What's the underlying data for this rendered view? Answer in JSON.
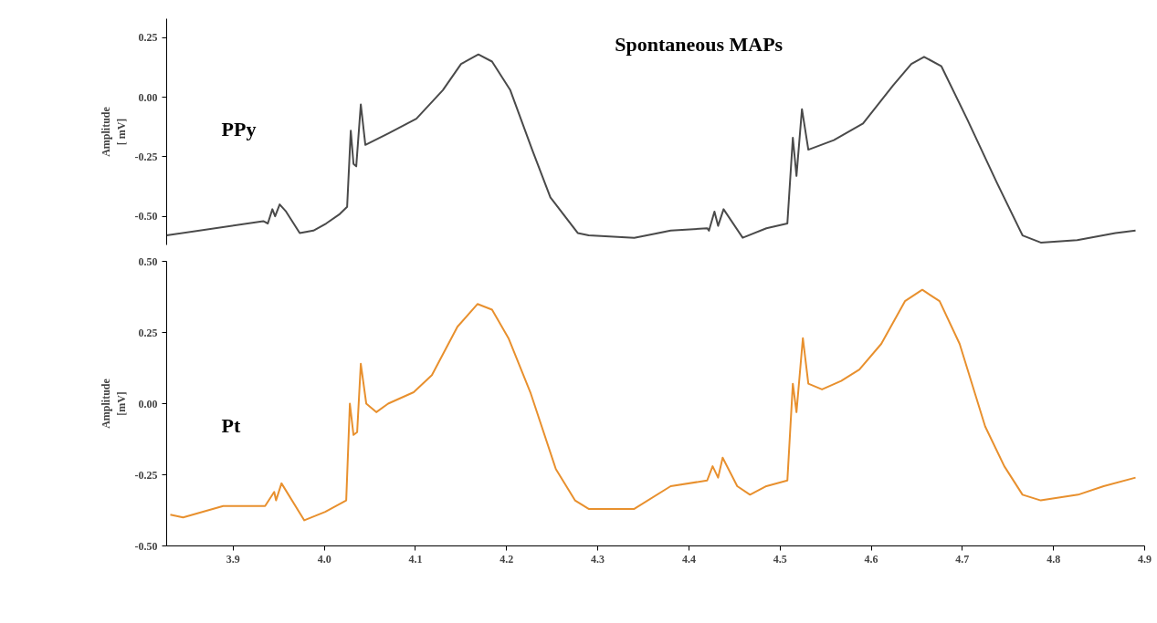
{
  "chart_data": [
    {
      "type": "line",
      "title": "Spontaneous MAPs",
      "ylabel": "Amplitude\n[ mV]",
      "tick_labels": "y",
      "grid": false,
      "xlim": [
        3.827,
        4.9
      ],
      "ylim": [
        -0.62,
        0.33
      ],
      "yticks": [
        {
          "value": -0.5,
          "label": "-0.50"
        },
        {
          "value": -0.25,
          "label": "-0.25"
        },
        {
          "value": 0,
          "label": "0.00"
        },
        {
          "value": 0.25,
          "label": "0.25"
        }
      ],
      "series": [
        {
          "name": "PPy",
          "color": "#4a4a4a",
          "x": [
            3.827,
            3.933,
            3.938,
            3.943,
            3.946,
            3.951,
            3.958,
            3.973,
            3.988,
            4.002,
            4.017,
            4.025,
            4.029,
            4.032,
            4.035,
            4.04,
            4.045,
            4.071,
            4.101,
            4.13,
            4.15,
            4.169,
            4.184,
            4.204,
            4.228,
            4.248,
            4.278,
            4.29,
            4.34,
            4.38,
            4.42,
            4.422,
            4.428,
            4.432,
            4.438,
            4.459,
            4.485,
            4.508,
            4.514,
            4.518,
            4.524,
            4.531,
            4.559,
            4.591,
            4.624,
            4.644,
            4.658,
            4.677,
            4.705,
            4.738,
            4.766,
            4.786,
            4.826,
            4.868,
            4.89
          ],
          "values": [
            -0.58,
            -0.52,
            -0.53,
            -0.47,
            -0.5,
            -0.45,
            -0.48,
            -0.57,
            -0.56,
            -0.53,
            -0.49,
            -0.46,
            -0.14,
            -0.28,
            -0.29,
            -0.03,
            -0.2,
            -0.15,
            -0.09,
            0.03,
            0.14,
            0.18,
            0.15,
            0.03,
            -0.22,
            -0.42,
            -0.57,
            -0.58,
            -0.59,
            -0.56,
            -0.55,
            -0.56,
            -0.48,
            -0.54,
            -0.47,
            -0.59,
            -0.55,
            -0.53,
            -0.17,
            -0.33,
            -0.05,
            -0.22,
            -0.18,
            -0.11,
            0.05,
            0.14,
            0.17,
            0.13,
            -0.09,
            -0.36,
            -0.58,
            -0.61,
            -0.6,
            -0.57,
            -0.56
          ]
        }
      ]
    },
    {
      "type": "line",
      "ylabel": "Amplitude\n[mV]",
      "grid": false,
      "xlim": [
        3.827,
        4.9
      ],
      "ylim": [
        -0.5,
        0.5
      ],
      "xticks": [
        3.9,
        {
          "value": 4.0,
          "label": "4.0"
        },
        4.1,
        4.2,
        4.3,
        4.4,
        4.5,
        4.6,
        4.7,
        4.8,
        4.9
      ],
      "yticks": [
        {
          "value": -0.5,
          "label": "-0.50"
        },
        {
          "value": -0.25,
          "label": "-0.25"
        },
        {
          "value": 0,
          "label": "0.00"
        },
        {
          "value": 0.25,
          "label": "0.25"
        },
        {
          "value": 0.5,
          "label": "0.50"
        }
      ],
      "series": [
        {
          "name": "Pt",
          "color": "#e8902e",
          "x": [
            3.831,
            3.845,
            3.889,
            3.935,
            3.945,
            3.947,
            3.953,
            3.978,
            4.001,
            4.024,
            4.028,
            4.032,
            4.036,
            4.04,
            4.046,
            4.057,
            4.07,
            4.098,
            4.118,
            4.146,
            4.168,
            4.184,
            4.202,
            4.226,
            4.254,
            4.275,
            4.29,
            4.34,
            4.38,
            4.42,
            4.426,
            4.432,
            4.437,
            4.453,
            4.467,
            4.485,
            4.508,
            4.514,
            4.518,
            4.525,
            4.531,
            4.546,
            4.567,
            4.587,
            4.611,
            4.637,
            4.656,
            4.675,
            4.697,
            4.725,
            4.746,
            4.766,
            4.786,
            4.827,
            4.855,
            4.89
          ],
          "values": [
            -0.39,
            -0.4,
            -0.36,
            -0.36,
            -0.31,
            -0.34,
            -0.28,
            -0.41,
            -0.38,
            -0.34,
            0.0,
            -0.11,
            -0.1,
            0.14,
            0.0,
            -0.03,
            0.0,
            0.04,
            0.1,
            0.27,
            0.35,
            0.33,
            0.23,
            0.04,
            -0.23,
            -0.34,
            -0.37,
            -0.37,
            -0.29,
            -0.27,
            -0.22,
            -0.26,
            -0.19,
            -0.29,
            -0.32,
            -0.29,
            -0.27,
            0.07,
            -0.03,
            0.23,
            0.07,
            0.05,
            0.08,
            0.12,
            0.21,
            0.36,
            0.4,
            0.36,
            0.21,
            -0.08,
            -0.22,
            -0.32,
            -0.34,
            -0.32,
            -0.29,
            -0.26
          ]
        }
      ]
    }
  ]
}
